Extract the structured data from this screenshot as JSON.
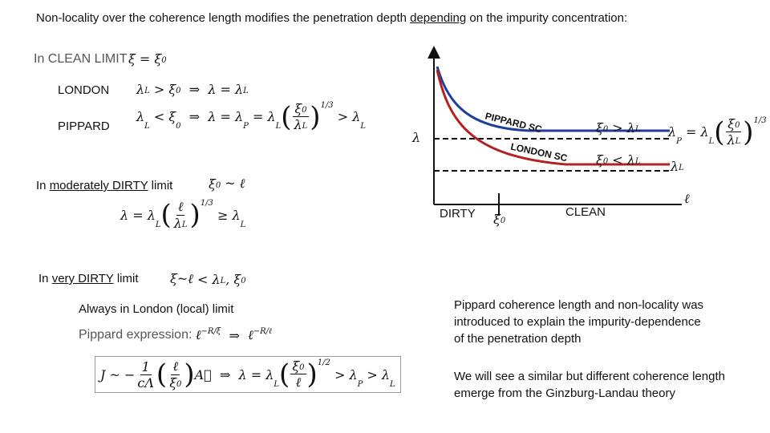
{
  "header": {
    "title": [
      "Non-locality over the coherence length modifies the penetration depth ",
      "depending",
      " on the impurity concentration:"
    ]
  },
  "clean": {
    "heading": "In CLEAN LIMIT",
    "condition": [
      "ξ = ξ",
      "0"
    ],
    "rows": [
      {
        "label": "LONDON",
        "formula": [
          "λ",
          "L",
          " > ",
          "ξ",
          "0",
          "  ⇒  ",
          "λ = λ",
          "L"
        ]
      },
      {
        "label": "PIPPARD",
        "formula": [
          "λ",
          "L",
          " < ",
          "ξ",
          "0",
          "  ⇒  ",
          "λ = λ",
          "P",
          " = λ",
          "L",
          "(",
          "ξ",
          "0",
          "λ",
          "L",
          ")",
          "1/3",
          " > λ",
          "L"
        ]
      }
    ]
  },
  "moderately_dirty": {
    "heading": [
      "In ",
      "moderately DIRTY",
      " limit"
    ],
    "condition": [
      "ξ",
      "0",
      " ~ ℓ"
    ],
    "formula": [
      "λ = λ",
      "L",
      "(",
      "ℓ",
      "λ",
      "L",
      ")",
      "1/3",
      " ≥ λ",
      "L"
    ]
  },
  "very_dirty": {
    "heading": [
      "In ",
      "very DIRTY",
      " limit"
    ],
    "condition": [
      "ξ~ℓ",
      " < λ",
      "L",
      ", ξ",
      "0"
    ],
    "note": "Always in London (local) limit",
    "pippard_label": "Pippard expression: ",
    "pippard_formula": [
      "ℓ",
      "−R/ξ",
      "  ⇒  ",
      "ℓ",
      "−R/ℓ"
    ],
    "current_formula": [
      "J ~ −",
      "1",
      "cΛ",
      "(",
      "ℓ",
      "ξ",
      "0",
      ")",
      "A⃗",
      "  ⇒  λ = λ",
      "L",
      "(",
      "ξ",
      "0",
      "ℓ",
      ")",
      "1/2",
      " > λ",
      "P",
      " > λ",
      "L"
    ]
  },
  "graph": {
    "y_axis": "λ",
    "x_axis": "ℓ",
    "dirty": "DIRTY",
    "clean": "CLEAN",
    "xi0_tick": [
      "ξ",
      "0"
    ],
    "pippard_curve": "PIPPARD SC",
    "london_curve": "LONDON SC",
    "upper_condition": [
      "ξ",
      "0",
      " > λ",
      "L"
    ],
    "lower_condition": [
      "ξ",
      "0",
      " < λ",
      "L"
    ],
    "lambda_p": [
      "λ",
      "P",
      " = λ",
      "L",
      "(",
      "ξ",
      "0",
      "λ",
      "L",
      ")",
      "1/3"
    ],
    "lambda_l": [
      "λ",
      "L"
    ]
  },
  "notes": [
    {
      "lines": [
        "Pippard coherence length and non-locality was",
        "introduced to explain the impurity-dependence",
        "of the penetration depth"
      ]
    },
    {
      "lines": [
        "We will see a similar but different coherence length",
        "emerge from the Ginzburg-Landau theory"
      ]
    }
  ]
}
